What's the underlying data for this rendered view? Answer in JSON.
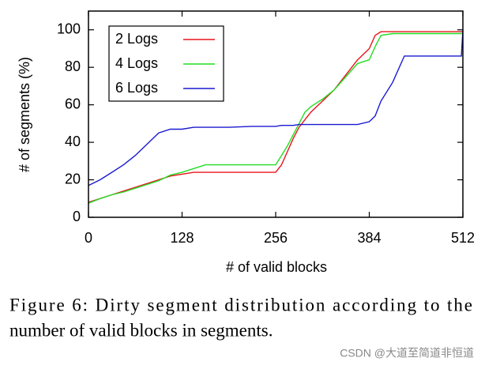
{
  "chart_data": {
    "type": "line",
    "xlabel": "# of valid blocks",
    "ylabel": "# of segments (%)",
    "x": [
      0,
      16,
      32,
      48,
      64,
      80,
      96,
      112,
      128,
      144,
      160,
      192,
      224,
      256,
      264,
      272,
      280,
      288,
      296,
      304,
      320,
      336,
      352,
      368,
      384,
      392,
      400,
      416,
      432,
      448,
      480,
      510,
      512
    ],
    "series": [
      {
        "name": "2 Logs",
        "color": "#e8141c",
        "values": [
          8,
          10,
          12,
          14,
          16,
          18,
          20,
          22,
          23,
          24,
          24,
          24,
          24,
          24,
          28,
          35,
          42,
          48,
          52,
          56,
          62,
          68,
          76,
          84,
          90,
          97,
          99,
          99,
          99,
          99,
          99,
          99,
          99
        ]
      },
      {
        "name": "4 Logs",
        "color": "#22dd22",
        "values": [
          7.5,
          10,
          12,
          13.5,
          15.5,
          17.5,
          19.5,
          22.5,
          24,
          26,
          28,
          28,
          28,
          28,
          33,
          38,
          44,
          50,
          56,
          59,
          63,
          68,
          75,
          82,
          84,
          91,
          97,
          98,
          98,
          98,
          98,
          98,
          98
        ]
      },
      {
        "name": "6 Logs",
        "color": "#1a1ad0",
        "values": [
          17,
          20,
          24,
          28,
          33,
          39,
          45,
          47,
          47,
          48,
          48,
          48,
          48.5,
          48.5,
          49,
          49,
          49,
          49.5,
          49.5,
          49.5,
          49.5,
          49.5,
          49.5,
          49.5,
          51,
          54,
          62,
          72,
          86,
          86,
          86,
          86,
          100
        ]
      }
    ],
    "xlim": [
      0,
      512
    ],
    "ylim": [
      0,
      110
    ],
    "xticks": [
      0,
      128,
      256,
      384,
      512
    ],
    "yticks": [
      0,
      20,
      40,
      60,
      80,
      100
    ],
    "legend": "top-left"
  },
  "caption": [
    "Figure 6: Dirty segment distribution according to the",
    "number of valid blocks in segments."
  ],
  "watermark": "CSDN @大道至简道非恒道"
}
